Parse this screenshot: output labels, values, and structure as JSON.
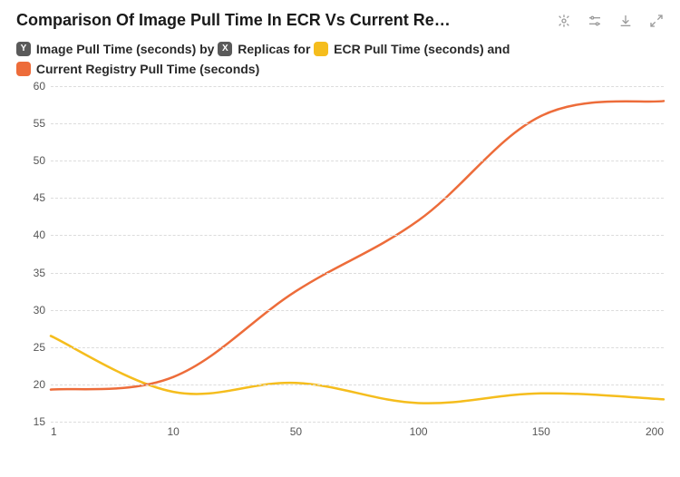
{
  "header": {
    "title": "Comparison Of Image Pull Time In ECR Vs Current Re…"
  },
  "legend": {
    "y_badge": "Y",
    "y_label": "Image Pull Time (seconds) by",
    "x_badge": "X",
    "x_label": "Replicas for",
    "and_word": "and",
    "series": [
      {
        "name": "ECR Pull Time (seconds)",
        "color": "#f5bd1d"
      },
      {
        "name": "Current Registry Pull Time (seconds)",
        "color": "#ed6c3a"
      }
    ]
  },
  "chart": {
    "type": "line",
    "background_color": "#ffffff",
    "grid_color": "#dcdcdc",
    "title_fontsize": 18,
    "legend_fontsize": 14,
    "tick_fontsize": 12,
    "tick_color": "#555555",
    "line_width": 2.5,
    "ylim": [
      15,
      60
    ],
    "ytick_step": 5,
    "x_values": [
      1,
      10,
      50,
      100,
      150,
      200
    ],
    "x_labels": [
      "1",
      "10",
      "50",
      "100",
      "150",
      "200"
    ],
    "series": [
      {
        "name": "ECR Pull Time (seconds)",
        "color": "#f5bd1d",
        "values": [
          26.5,
          19.0,
          20.2,
          17.5,
          18.8,
          18.0
        ]
      },
      {
        "name": "Current Registry Pull Time (seconds)",
        "color": "#ed6c3a",
        "values": [
          19.3,
          21.0,
          32.5,
          42.0,
          56.0,
          58.0
        ]
      }
    ]
  }
}
